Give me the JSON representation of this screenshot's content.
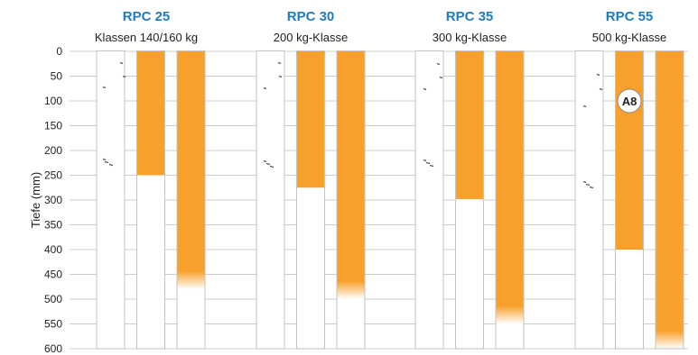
{
  "chart_data": {
    "type": "bar",
    "ylabel": "Tiefe (mm)",
    "yticks": [
      0,
      50,
      100,
      150,
      200,
      250,
      300,
      350,
      400,
      450,
      500,
      550,
      600
    ],
    "ylim": [
      0,
      600
    ],
    "y_inverted": true,
    "grid": true,
    "colors": {
      "bar": "#f7a02c",
      "title": "#1f7bbf",
      "grid": "#bbbbbb",
      "column_border": "#b5b5b5"
    },
    "groups": [
      {
        "title": "RPC 25",
        "subtitle": "Klassen 140/160 kg",
        "bars": [
          250,
          480
        ]
      },
      {
        "title": "RPC 30",
        "subtitle": "200 kg-Klasse",
        "bars": [
          275,
          500
        ]
      },
      {
        "title": "RPC 35",
        "subtitle": "300 kg-Klasse",
        "bars": [
          298,
          550
        ]
      },
      {
        "title": "RPC 55",
        "subtitle": "500 kg-Klasse",
        "bars": [
          400,
          600
        ],
        "badge": "A8"
      }
    ]
  }
}
